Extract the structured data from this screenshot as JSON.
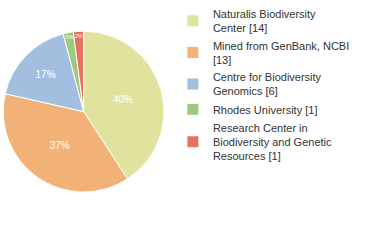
{
  "chart_data": {
    "type": "pie",
    "categories": [
      "Naturalis Biodiversity Center [14]",
      "Mined from GenBank, NCBI [13]",
      "Centre for Biodiversity Genomics [6]",
      "Rhodes University [1]",
      "Research Center in Biodiversity and Genetic Resources [1]"
    ],
    "values": [
      40,
      37,
      17,
      2,
      2
    ],
    "value_labels": [
      "40%",
      "37%",
      "17%",
      "2%",
      "2%"
    ],
    "colors": [
      "#dfe39d",
      "#f2b277",
      "#a3bfe0",
      "#9fc97f",
      "#e3735d"
    ],
    "data_labels": true,
    "legend": "top right"
  }
}
